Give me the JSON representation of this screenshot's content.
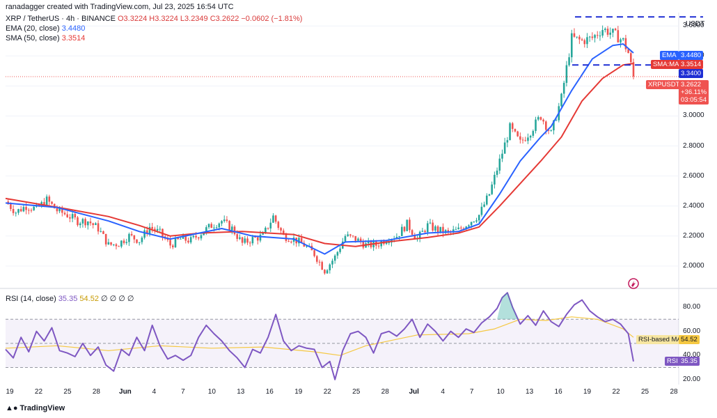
{
  "credit": "ranadagger created with TradingView.com, Jul 23, 2025 16:54 UTC",
  "legend": {
    "symbol": "XRP / TetherUS · 4h · BINANCE",
    "ohlc": "O3.3224  H3.3224  L3.2349  C3.2622  −0.0602 (−1.81%)",
    "ema": "EMA (20, close)",
    "ema_value": "3.4480",
    "sma": "SMA (50, close)",
    "sma_value": "3.3514"
  },
  "rsi_legend": {
    "label": "RSI (14, close)",
    "value": "35.35",
    "ma_value": "54.52",
    "extra": "∅  ∅  ∅  ∅"
  },
  "currency": "USDT",
  "brand": "TradingView",
  "tags": {
    "ema_name": "EMA",
    "ema_value": "3.4480",
    "sma_name": "SMA:MA",
    "sma_value": "3.3514",
    "level": "3.3400",
    "symbol_name": "XRPUSDT",
    "price": "3.2622",
    "change": "+36.11%",
    "countdown": "03:05:54",
    "rsi_ma_name": "RSI-based MA",
    "rsi_ma_value": "54.52",
    "rsi_name": "RSI",
    "rsi_value": "35.35"
  },
  "colors": {
    "up": "#26a69a",
    "down": "#ef5350",
    "ema": "#2962ff",
    "sma": "#e53935",
    "rsi": "#7e57c2",
    "rsi_ma": "#f5c842",
    "level_line": "#1e2fd4"
  },
  "chart_data": [
    {
      "type": "candlestick",
      "title": "XRP / TetherUS · 4h · BINANCE",
      "y_ticks": [
        "3.6000",
        "3.4000",
        "3.2000",
        "3.0000",
        "2.8000",
        "2.6000",
        "2.4000",
        "2.2000",
        "2.0000"
      ],
      "ylim": [
        1.86,
        3.68
      ],
      "x_ticks": [
        "19",
        "22",
        "25",
        "28",
        "Jun",
        "4",
        "7",
        "10",
        "13",
        "16",
        "19",
        "22",
        "25",
        "28",
        "Jul",
        "4",
        "7",
        "10",
        "13",
        "16",
        "19",
        "22",
        "25",
        "28"
      ],
      "price_path": [
        [
          0,
          2.43
        ],
        [
          4,
          2.36
        ],
        [
          8,
          2.4
        ],
        [
          12,
          2.38
        ],
        [
          16,
          2.44
        ],
        [
          20,
          2.37
        ],
        [
          24,
          2.34
        ],
        [
          28,
          2.3
        ],
        [
          32,
          2.3
        ],
        [
          36,
          2.25
        ],
        [
          40,
          2.14
        ],
        [
          44,
          2.15
        ],
        [
          48,
          2.2
        ],
        [
          52,
          2.17
        ],
        [
          56,
          2.26
        ],
        [
          60,
          2.22
        ],
        [
          64,
          2.14
        ],
        [
          68,
          2.18
        ],
        [
          72,
          2.17
        ],
        [
          76,
          2.22
        ],
        [
          80,
          2.27
        ],
        [
          84,
          2.3
        ],
        [
          88,
          2.25
        ],
        [
          92,
          2.15
        ],
        [
          96,
          2.18
        ],
        [
          100,
          2.2
        ],
        [
          104,
          2.33
        ],
        [
          108,
          2.2
        ],
        [
          112,
          2.18
        ],
        [
          116,
          2.14
        ],
        [
          120,
          2.08
        ],
        [
          124,
          1.97
        ],
        [
          128,
          2.06
        ],
        [
          132,
          2.2
        ],
        [
          136,
          2.18
        ],
        [
          140,
          2.14
        ],
        [
          144,
          2.14
        ],
        [
          148,
          2.18
        ],
        [
          152,
          2.2
        ],
        [
          156,
          2.28
        ],
        [
          160,
          2.18
        ],
        [
          164,
          2.27
        ],
        [
          168,
          2.24
        ],
        [
          172,
          2.22
        ],
        [
          176,
          2.24
        ],
        [
          180,
          2.29
        ],
        [
          184,
          2.34
        ],
        [
          188,
          2.48
        ],
        [
          192,
          2.7
        ],
        [
          196,
          2.92
        ],
        [
          200,
          2.82
        ],
        [
          204,
          2.9
        ],
        [
          208,
          3.0
        ],
        [
          212,
          2.88
        ],
        [
          216,
          3.12
        ],
        [
          220,
          3.52
        ],
        [
          224,
          3.5
        ],
        [
          228,
          3.52
        ],
        [
          232,
          3.58
        ],
        [
          236,
          3.55
        ],
        [
          240,
          3.5
        ],
        [
          242,
          3.42
        ],
        [
          244,
          3.26
        ]
      ],
      "ema_20": [
        [
          0,
          2.42
        ],
        [
          20,
          2.39
        ],
        [
          40,
          2.3
        ],
        [
          52,
          2.23
        ],
        [
          64,
          2.18
        ],
        [
          84,
          2.25
        ],
        [
          96,
          2.2
        ],
        [
          112,
          2.18
        ],
        [
          124,
          2.08
        ],
        [
          132,
          2.16
        ],
        [
          148,
          2.17
        ],
        [
          164,
          2.22
        ],
        [
          176,
          2.23
        ],
        [
          184,
          2.28
        ],
        [
          192,
          2.48
        ],
        [
          200,
          2.7
        ],
        [
          208,
          2.86
        ],
        [
          212,
          2.93
        ],
        [
          220,
          3.17
        ],
        [
          228,
          3.38
        ],
        [
          236,
          3.47
        ],
        [
          240,
          3.48
        ],
        [
          244,
          3.42
        ]
      ],
      "sma_50": [
        [
          0,
          2.45
        ],
        [
          24,
          2.38
        ],
        [
          40,
          2.33
        ],
        [
          52,
          2.27
        ],
        [
          64,
          2.2
        ],
        [
          76,
          2.22
        ],
        [
          92,
          2.23
        ],
        [
          112,
          2.21
        ],
        [
          124,
          2.15
        ],
        [
          136,
          2.13
        ],
        [
          148,
          2.16
        ],
        [
          164,
          2.19
        ],
        [
          176,
          2.22
        ],
        [
          184,
          2.26
        ],
        [
          192,
          2.4
        ],
        [
          200,
          2.55
        ],
        [
          208,
          2.7
        ],
        [
          216,
          2.86
        ],
        [
          224,
          3.1
        ],
        [
          232,
          3.25
        ],
        [
          240,
          3.34
        ],
        [
          244,
          3.35
        ]
      ],
      "horizontal_lines": [
        3.66,
        3.34
      ],
      "last_price": 3.2622
    },
    {
      "type": "line",
      "title": "RSI (14, close)",
      "y_ticks": [
        "80.00",
        "60.00",
        "40.00",
        "20.00"
      ],
      "ylim": [
        17,
        95
      ],
      "bands": [
        30,
        50,
        70
      ],
      "rsi": [
        [
          0,
          45
        ],
        [
          3,
          38
        ],
        [
          6,
          55
        ],
        [
          9,
          43
        ],
        [
          12,
          60
        ],
        [
          15,
          52
        ],
        [
          18,
          63
        ],
        [
          21,
          44
        ],
        [
          24,
          42
        ],
        [
          27,
          39
        ],
        [
          30,
          50
        ],
        [
          33,
          40
        ],
        [
          36,
          47
        ],
        [
          39,
          32
        ],
        [
          42,
          27
        ],
        [
          45,
          45
        ],
        [
          48,
          40
        ],
        [
          51,
          55
        ],
        [
          54,
          44
        ],
        [
          57,
          65
        ],
        [
          60,
          48
        ],
        [
          63,
          37
        ],
        [
          66,
          40
        ],
        [
          69,
          36
        ],
        [
          72,
          40
        ],
        [
          75,
          55
        ],
        [
          78,
          65
        ],
        [
          81,
          58
        ],
        [
          84,
          52
        ],
        [
          87,
          44
        ],
        [
          90,
          38
        ],
        [
          93,
          30
        ],
        [
          96,
          45
        ],
        [
          99,
          42
        ],
        [
          102,
          55
        ],
        [
          105,
          74
        ],
        [
          108,
          52
        ],
        [
          111,
          44
        ],
        [
          114,
          48
        ],
        [
          117,
          46
        ],
        [
          120,
          45
        ],
        [
          123,
          30
        ],
        [
          126,
          35
        ],
        [
          128,
          20
        ],
        [
          131,
          44
        ],
        [
          134,
          58
        ],
        [
          137,
          60
        ],
        [
          140,
          55
        ],
        [
          143,
          42
        ],
        [
          146,
          58
        ],
        [
          149,
          60
        ],
        [
          152,
          56
        ],
        [
          155,
          62
        ],
        [
          158,
          70
        ],
        [
          161,
          55
        ],
        [
          164,
          66
        ],
        [
          167,
          60
        ],
        [
          170,
          52
        ],
        [
          173,
          60
        ],
        [
          176,
          55
        ],
        [
          179,
          62
        ],
        [
          182,
          59
        ],
        [
          185,
          67
        ],
        [
          188,
          72
        ],
        [
          191,
          79
        ],
        [
          193,
          88
        ],
        [
          195,
          92
        ],
        [
          197,
          80
        ],
        [
          200,
          66
        ],
        [
          203,
          73
        ],
        [
          206,
          65
        ],
        [
          209,
          77
        ],
        [
          212,
          68
        ],
        [
          215,
          64
        ],
        [
          218,
          74
        ],
        [
          221,
          82
        ],
        [
          224,
          86
        ],
        [
          227,
          77
        ],
        [
          230,
          72
        ],
        [
          233,
          68
        ],
        [
          236,
          70
        ],
        [
          239,
          66
        ],
        [
          242,
          58
        ],
        [
          244,
          35
        ]
      ],
      "rsi_ma": [
        [
          0,
          46
        ],
        [
          20,
          48
        ],
        [
          40,
          44
        ],
        [
          60,
          48
        ],
        [
          80,
          46
        ],
        [
          100,
          47
        ],
        [
          120,
          43
        ],
        [
          130,
          40
        ],
        [
          140,
          48
        ],
        [
          160,
          57
        ],
        [
          180,
          58
        ],
        [
          190,
          62
        ],
        [
          200,
          70
        ],
        [
          210,
          69
        ],
        [
          220,
          72
        ],
        [
          230,
          70
        ],
        [
          240,
          62
        ],
        [
          244,
          55
        ]
      ],
      "last_value": 35.35,
      "last_ma": 54.52
    }
  ]
}
